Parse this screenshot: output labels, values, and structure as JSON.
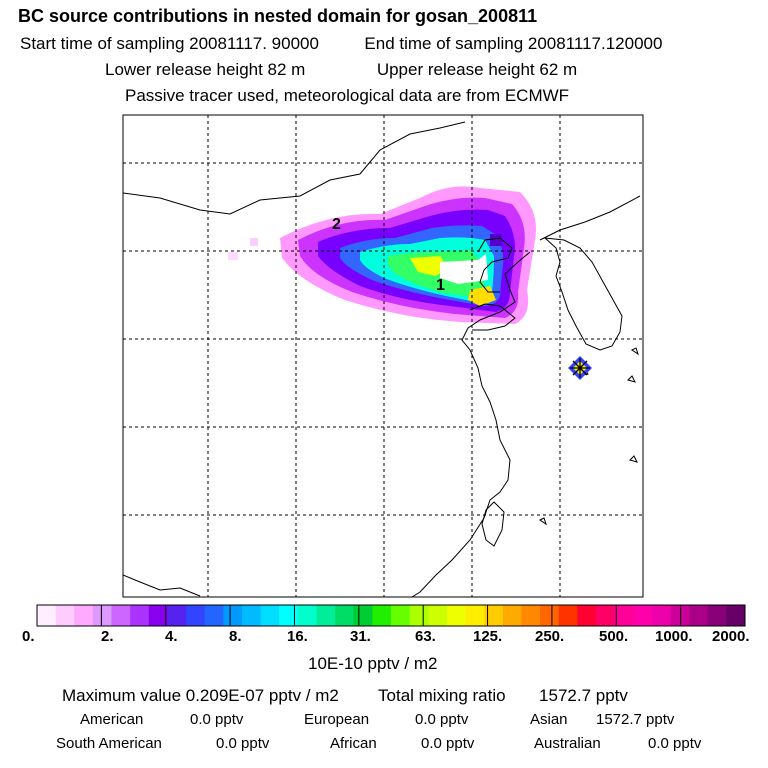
{
  "header": {
    "title": "BC  source contributions in nested domain for gosan_200811",
    "start_label": "Start time of sampling 20081117. 90000",
    "end_label": "End time of sampling 20081117.120000",
    "lower_label": "Lower release height   82 m",
    "upper_label": "Upper release height   62 m",
    "tracer_note": "Passive tracer used, meteorological data are from ECMWF"
  },
  "map": {
    "markers": [
      "1",
      "2"
    ],
    "plume_colors": [
      "#ff99ff",
      "#cc33ff",
      "#9900ff",
      "#3366ff",
      "#00aaff",
      "#00ffdd",
      "#33ff66",
      "#aaff00",
      "#ffff00"
    ]
  },
  "colorbar": {
    "colors": [
      "#ffeeff",
      "#ffccff",
      "#ffaaff",
      "#dd99ff",
      "#cc66ff",
      "#aa33ff",
      "#8800ee",
      "#5522ee",
      "#3344ff",
      "#2266ff",
      "#0099ff",
      "#00bbff",
      "#00ddff",
      "#00ffff",
      "#00ffcc",
      "#00ee99",
      "#00dd66",
      "#00cc33",
      "#22ee00",
      "#66ff00",
      "#aaff00",
      "#ccff00",
      "#eeff00",
      "#ffee00",
      "#ffcc00",
      "#ffaa00",
      "#ff8800",
      "#ff6600",
      "#ff3300",
      "#ff0033",
      "#ff0066",
      "#ff0099",
      "#ff00aa",
      "#ee00aa",
      "#cc0099",
      "#aa0088",
      "#880077",
      "#660066"
    ],
    "ticks": [
      "0.",
      "2.",
      "4.",
      "8.",
      "16.",
      "31.",
      "63.",
      "125.",
      "250.",
      "500.",
      "1000.",
      "2000."
    ],
    "units": "10E-10 pptv / m2"
  },
  "summary": {
    "max_label": "Maximum value  0.209E-07 pptv / m2",
    "total_label": "Total mixing ratio",
    "total_value": "1572.7 pptv",
    "regions": [
      {
        "name": "American",
        "value": "0.0 pptv"
      },
      {
        "name": "European",
        "value": "0.0 pptv"
      },
      {
        "name": "Asian",
        "value": "1572.7 pptv"
      },
      {
        "name": "South American",
        "value": "0.0 pptv"
      },
      {
        "name": "African",
        "value": "0.0 pptv"
      },
      {
        "name": "Australian",
        "value": "0.0 pptv"
      }
    ]
  }
}
